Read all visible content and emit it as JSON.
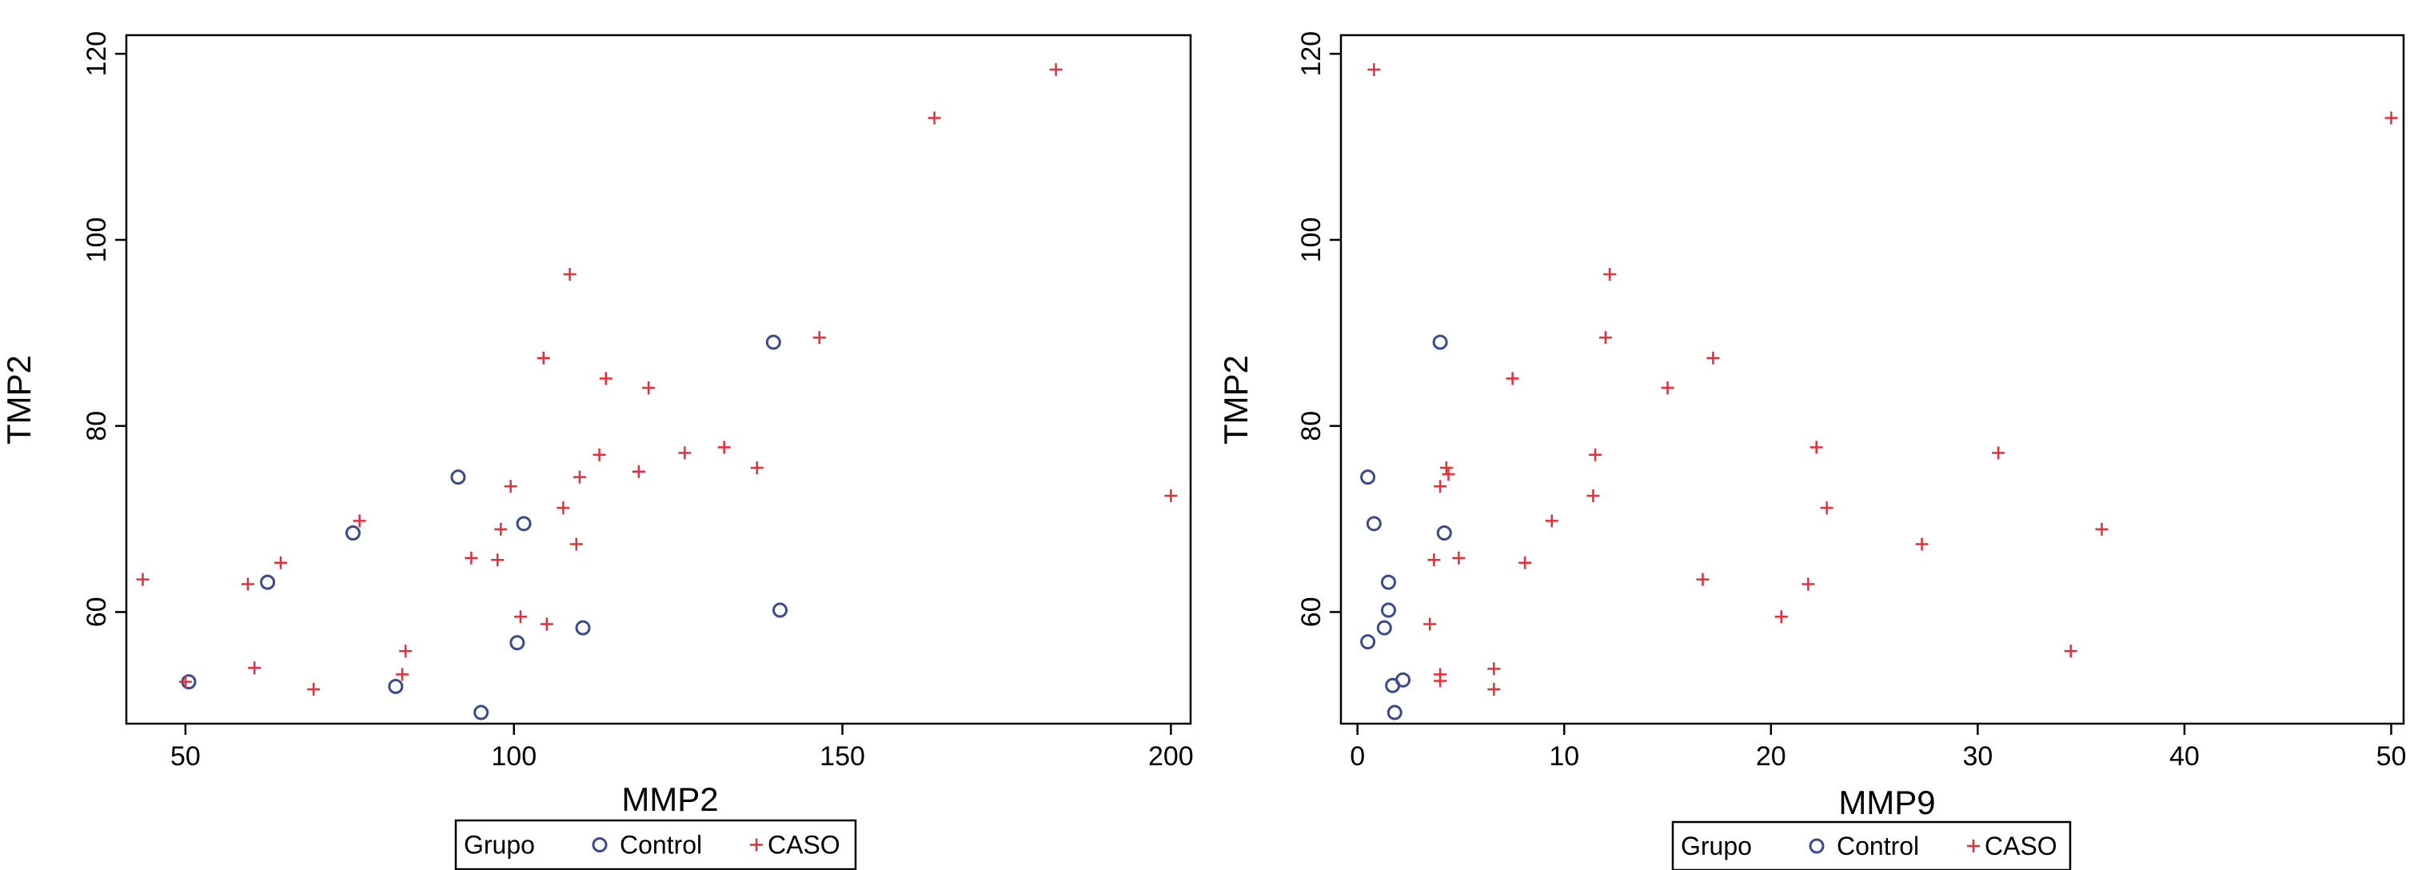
{
  "chart_data": [
    {
      "type": "scatter",
      "xlabel": "MMP2",
      "ylabel": "TMP2",
      "xlim": [
        41,
        203
      ],
      "ylim": [
        48,
        122
      ],
      "xticks": [
        50,
        100,
        150,
        200
      ],
      "yticks": [
        60,
        80,
        100,
        120
      ],
      "grid": false,
      "legend": {
        "title": "Grupo",
        "position": "bottom",
        "entries": [
          {
            "name": "Control",
            "marker": "circle",
            "color": "#3a4a8c"
          },
          {
            "name": "CASO",
            "marker": "plus",
            "color": "#e0303a"
          }
        ]
      },
      "series": [
        {
          "name": "Control",
          "marker": "circle",
          "color": "#3a4a8c",
          "points": [
            [
              50.5,
              52.5
            ],
            [
              62.5,
              63.2
            ],
            [
              75.5,
              68.5
            ],
            [
              82,
              52
            ],
            [
              91.5,
              74.5
            ],
            [
              95,
              49.2
            ],
            [
              100.5,
              56.7
            ],
            [
              101.5,
              69.5
            ],
            [
              110.5,
              58.3
            ],
            [
              139.5,
              89
            ],
            [
              140.5,
              60.2
            ]
          ]
        },
        {
          "name": "CASO",
          "marker": "plus",
          "color": "#e0303a",
          "points": [
            [
              43.5,
              63.5
            ],
            [
              50,
              52.5
            ],
            [
              59.5,
              63
            ],
            [
              60.5,
              54
            ],
            [
              64.5,
              65.3
            ],
            [
              69.5,
              51.7
            ],
            [
              76.5,
              69.8
            ],
            [
              83,
              53.3
            ],
            [
              83.5,
              55.8
            ],
            [
              93.5,
              65.8
            ],
            [
              97.5,
              65.6
            ],
            [
              98,
              68.9
            ],
            [
              99.5,
              73.5
            ],
            [
              101,
              59.5
            ],
            [
              104.5,
              87.3
            ],
            [
              105,
              58.7
            ],
            [
              107.5,
              71.2
            ],
            [
              108.5,
              96.3
            ],
            [
              109.5,
              67.3
            ],
            [
              110,
              74.5
            ],
            [
              113,
              76.9
            ],
            [
              114,
              85.1
            ],
            [
              119,
              75.1
            ],
            [
              120.5,
              84.1
            ],
            [
              126,
              77.1
            ],
            [
              132,
              77.7
            ],
            [
              137,
              75.5
            ],
            [
              146.5,
              89.5
            ],
            [
              164,
              113.1
            ],
            [
              182.5,
              118.3
            ],
            [
              200,
              72.5
            ]
          ]
        }
      ]
    },
    {
      "type": "scatter",
      "xlabel": "MMP9",
      "ylabel": "TMP2",
      "xlim": [
        -0.8,
        50.6
      ],
      "ylim": [
        48,
        122
      ],
      "xticks": [
        0,
        10,
        20,
        30,
        40,
        50
      ],
      "yticks": [
        60,
        80,
        100,
        120
      ],
      "grid": false,
      "legend": {
        "title": "Grupo",
        "position": "bottom",
        "entries": [
          {
            "name": "Control",
            "marker": "circle",
            "color": "#3a4a8c"
          },
          {
            "name": "CASO",
            "marker": "plus",
            "color": "#e0303a"
          }
        ]
      },
      "series": [
        {
          "name": "Control",
          "marker": "circle",
          "color": "#3a4a8c",
          "points": [
            [
              0.5,
              74.5
            ],
            [
              0.8,
              69.5
            ],
            [
              0.5,
              56.8
            ],
            [
              1.3,
              58.3
            ],
            [
              1.5,
              60.2
            ],
            [
              1.5,
              63.2
            ],
            [
              1.7,
              52.1
            ],
            [
              1.8,
              49.2
            ],
            [
              2.2,
              52.7
            ],
            [
              4,
              89
            ],
            [
              4.2,
              68.5
            ]
          ]
        },
        {
          "name": "CASO",
          "marker": "plus",
          "color": "#e0303a",
          "points": [
            [
              0.8,
              118.3
            ],
            [
              3.5,
              58.7
            ],
            [
              3.7,
              65.6
            ],
            [
              4,
              73.5
            ],
            [
              4,
              53.3
            ],
            [
              4,
              52.6
            ],
            [
              4.3,
              75.5
            ],
            [
              4.4,
              74.8
            ],
            [
              4.9,
              65.8
            ],
            [
              6.6,
              53.9
            ],
            [
              6.6,
              51.7
            ],
            [
              7.5,
              85.1
            ],
            [
              8.1,
              65.3
            ],
            [
              9.4,
              69.8
            ],
            [
              11.4,
              72.5
            ],
            [
              11.5,
              76.9
            ],
            [
              12,
              89.5
            ],
            [
              12.2,
              96.3
            ],
            [
              15,
              84.1
            ],
            [
              16.7,
              63.5
            ],
            [
              17.2,
              87.3
            ],
            [
              20.5,
              59.5
            ],
            [
              21.8,
              63
            ],
            [
              22.2,
              77.7
            ],
            [
              22.7,
              71.2
            ],
            [
              27.3,
              67.3
            ],
            [
              31,
              77.1
            ],
            [
              34.5,
              55.8
            ],
            [
              36,
              68.9
            ],
            [
              50,
              113.1
            ]
          ]
        }
      ]
    }
  ]
}
